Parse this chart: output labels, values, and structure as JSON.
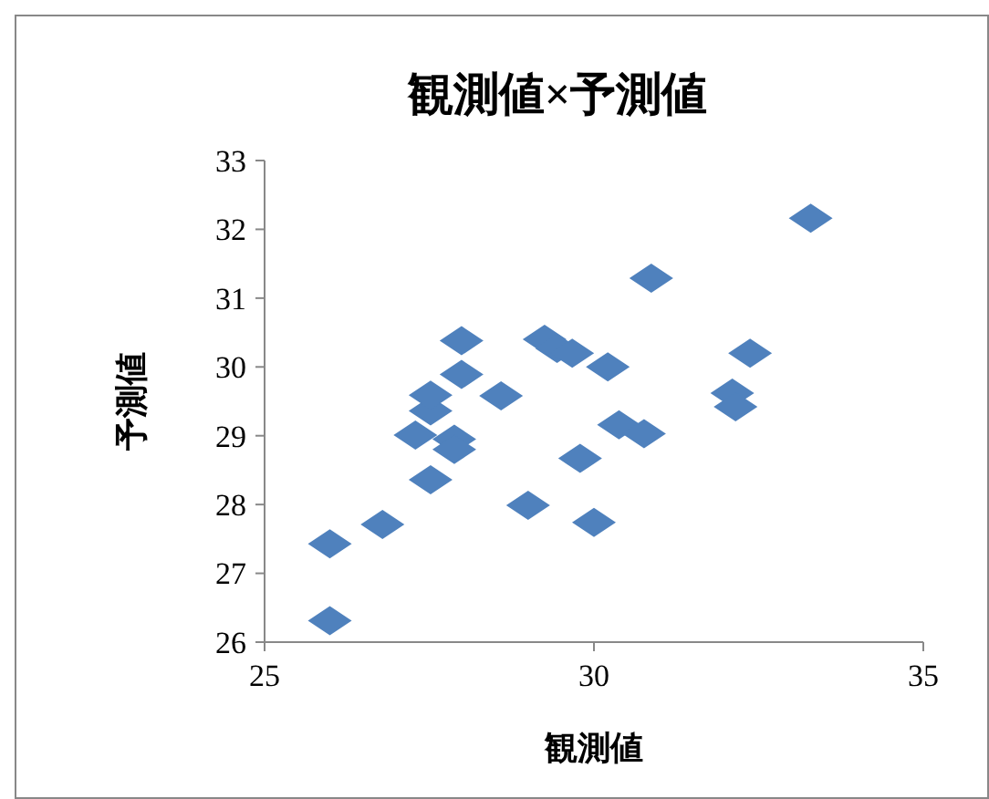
{
  "chart_data": {
    "type": "scatter",
    "title": "観測値×予測値",
    "xlabel": "観測値",
    "ylabel": "予測値",
    "marker": "diamond",
    "xlim": [
      25,
      35
    ],
    "xticks": [
      25,
      30,
      35
    ],
    "ylim": [
      26,
      33
    ],
    "yticks": [
      26,
      27,
      28,
      29,
      30,
      31,
      32,
      33
    ],
    "series": [
      {
        "color": "#4f81bd",
        "x": [
          25.99,
          25.99,
          26.79,
          27.52,
          27.29,
          27.52,
          27.52,
          27.88,
          27.88,
          27.99,
          27.99,
          28.59,
          29.0,
          29.25,
          29.44,
          29.67,
          29.79,
          30.0,
          30.21,
          30.38,
          30.76,
          30.87,
          32.1,
          32.15,
          32.37,
          33.29
        ],
        "values": [
          26.31,
          27.43,
          27.71,
          28.36,
          29.01,
          29.36,
          29.59,
          28.95,
          28.8,
          29.89,
          30.38,
          29.58,
          27.99,
          30.4,
          30.27,
          30.2,
          28.67,
          27.74,
          30.0,
          29.16,
          29.03,
          31.29,
          29.62,
          29.42,
          30.2,
          32.16
        ]
      }
    ]
  }
}
